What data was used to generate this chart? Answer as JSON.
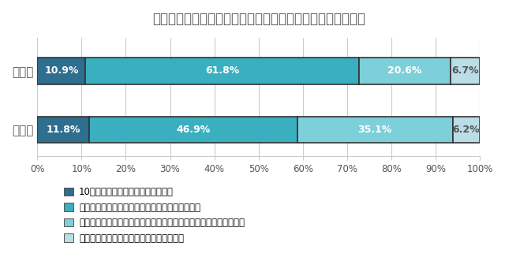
{
  "title": "今年に入ってから、子どもに東日本大震災の話をしましたか",
  "categories": [
    "小学生",
    "中高生"
  ],
  "series": [
    {
      "label": "10年の節目を機に、子どもに話した",
      "values": [
        10.9,
        11.8
      ],
      "color": "#2E6E8E"
    },
    {
      "label": "今年に限らず、子どもに話す機会をつくっている",
      "values": [
        61.8,
        46.9
      ],
      "color": "#3AAFBF"
    },
    {
      "label": "今年はまだ子どもに話していないが、これまでに話したことはある",
      "values": [
        20.6,
        35.1
      ],
      "color": "#7DCFDA"
    },
    {
      "label": "今まで、一度も子どもと話したことはない",
      "values": [
        6.7,
        6.2
      ],
      "color": "#BBDDE6"
    }
  ],
  "xlim": [
    0,
    100
  ],
  "xticks": [
    0,
    10,
    20,
    30,
    40,
    50,
    60,
    70,
    80,
    90,
    100
  ],
  "xticklabels": [
    "0%",
    "10%",
    "20%",
    "30%",
    "40%",
    "50%",
    "60%",
    "70%",
    "80%",
    "90%",
    "100%"
  ],
  "bar_height": 0.45,
  "bar_edgecolor": "#333333",
  "bar_linewidth": 1.2,
  "title_fontsize": 12,
  "label_fontsize": 9,
  "legend_fontsize": 8.5,
  "tick_fontsize": 8.5,
  "ytick_fontsize": 11,
  "background_color": "#ffffff",
  "text_color": "#555555"
}
